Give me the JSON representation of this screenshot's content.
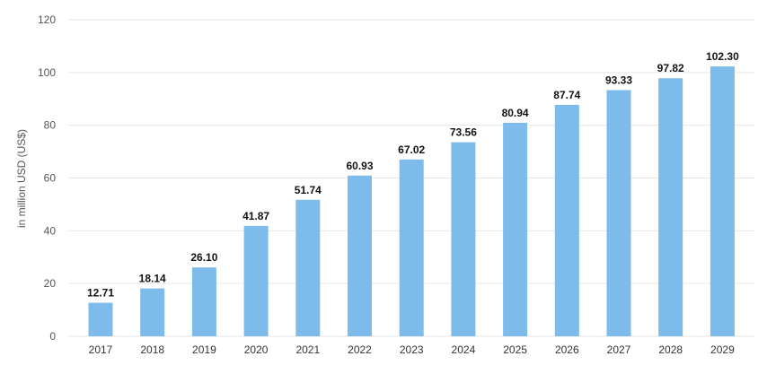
{
  "chart_data": {
    "type": "bar",
    "categories": [
      "2017",
      "2018",
      "2019",
      "2020",
      "2021",
      "2022",
      "2023",
      "2024",
      "2025",
      "2026",
      "2027",
      "2028",
      "2029"
    ],
    "values": [
      12.71,
      18.14,
      26.1,
      41.87,
      51.74,
      60.93,
      67.02,
      73.56,
      80.94,
      87.74,
      93.33,
      97.82,
      102.3
    ],
    "value_labels": [
      "12.71",
      "18.14",
      "26.10",
      "41.87",
      "51.74",
      "60.93",
      "67.02",
      "73.56",
      "80.94",
      "87.74",
      "93.33",
      "97.82",
      "102.30"
    ],
    "ylabel": "in million USD (US$)",
    "ylim": [
      0,
      120
    ],
    "yticks": [
      "0",
      "20",
      "40",
      "60",
      "80",
      "100",
      "120"
    ],
    "grid": true,
    "bar_color": "#7cbbea",
    "grid_color": "#e6e6e6"
  }
}
